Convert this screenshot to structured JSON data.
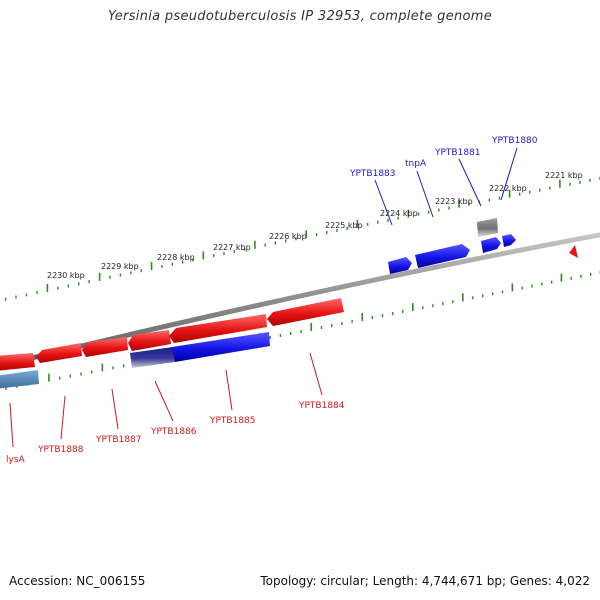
{
  "title": "Yersinia pseudotuberculosis IP 32953, complete genome",
  "footer": {
    "accession": "Accession: NC_006155",
    "summary": "Topology: circular; Length: 4,744,671 bp; Genes: 4,022"
  },
  "colors": {
    "background": "#ffffff",
    "backbone": "#8c8c8c",
    "tick": "#2e8b22",
    "forward_gene": "#1414e6",
    "reverse_gene": "#e61414",
    "forward_label": "#1a1acc",
    "reverse_label": "#cc1a1a",
    "pseudo_gene": "#808080",
    "partial_gene": "#4682b4"
  },
  "outer_ticks": [
    "2230 kbp",
    "2229 kbp",
    "2228 kbp",
    "2227 kbp",
    "2226 kbp",
    "2225 kbp",
    "2224 kbp",
    "2223 kbp",
    "2222 kbp",
    "2221 kbp"
  ],
  "forward_genes": [
    {
      "label": "YPTB1883",
      "color": "#1414e6"
    },
    {
      "label": "tnpA",
      "color": "#1414e6"
    },
    {
      "label": "YPTB1881",
      "color": "#808080"
    },
    {
      "label": "YPTB1880",
      "color": "#1414e6"
    }
  ],
  "reverse_genes": [
    {
      "label": "lysA",
      "color": "#e61414"
    },
    {
      "label": "YPTB1888",
      "color": "#e61414"
    },
    {
      "label": "YPTB1887",
      "color": "#e61414"
    },
    {
      "label": "YPTB1886",
      "color": "#e61414"
    },
    {
      "label": "YPTB1885",
      "color": "#e61414"
    },
    {
      "label": "YPTB1884",
      "color": "#e61414"
    }
  ],
  "inner_genes": [
    {
      "color": "#4682b4"
    },
    {
      "color": "#1a1a80"
    },
    {
      "color": "#1414e6"
    }
  ]
}
